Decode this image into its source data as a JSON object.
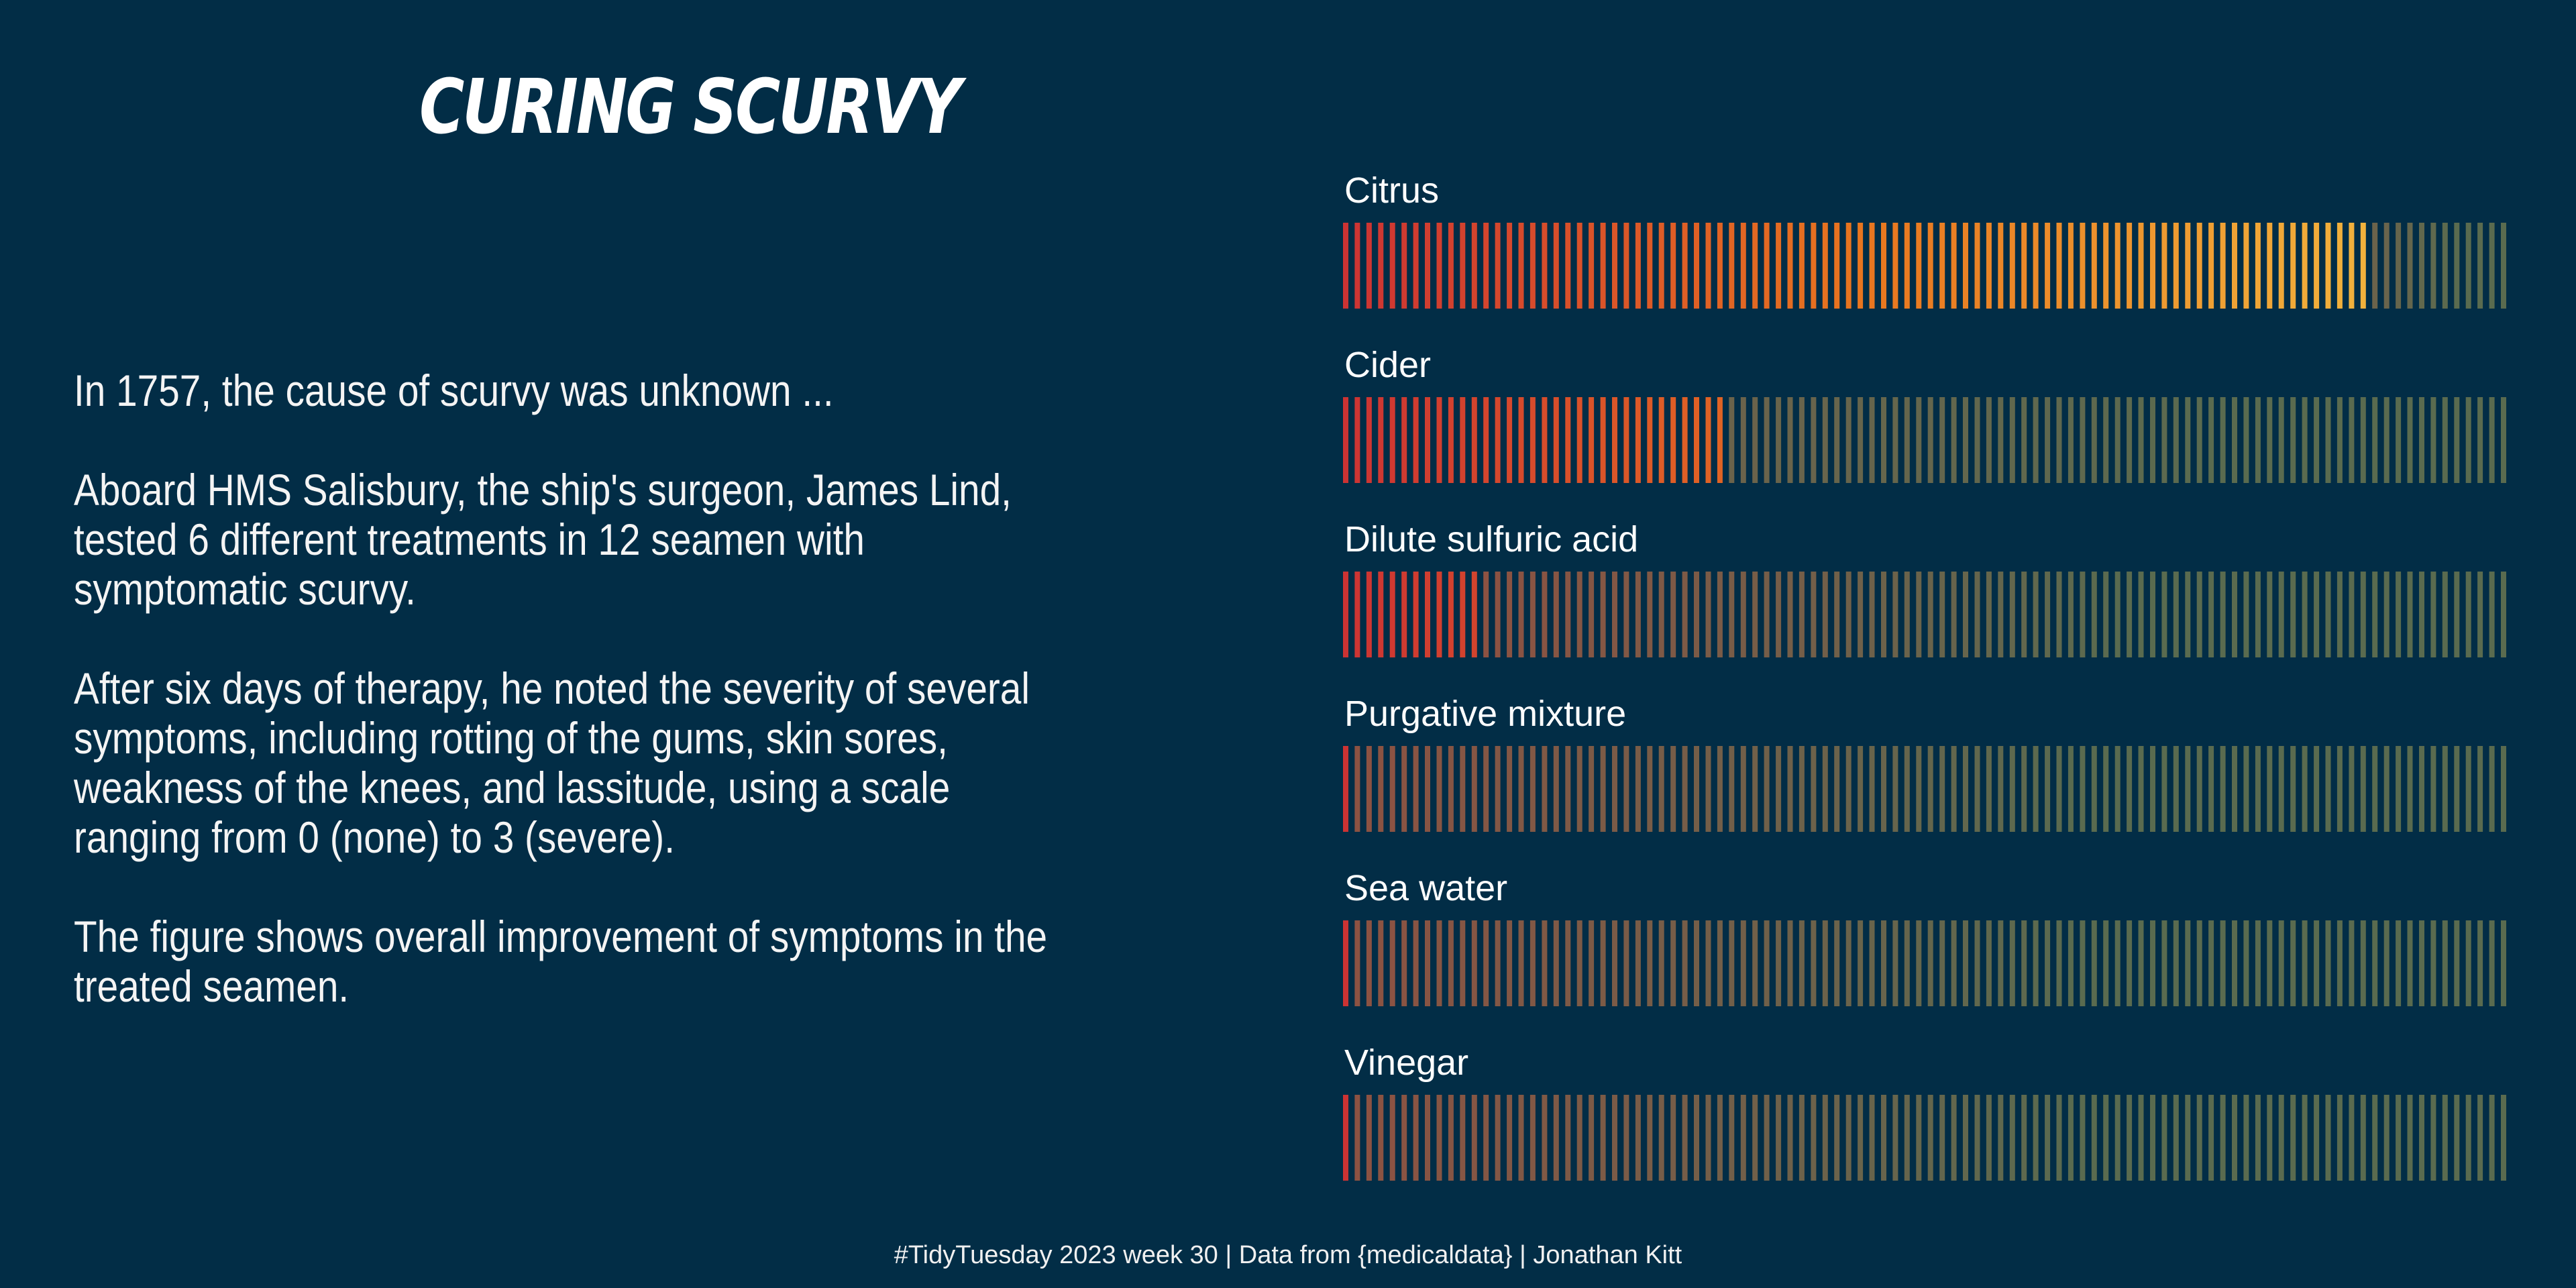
{
  "title": "Curing scurvy",
  "intro": {
    "p1": "In 1757, the cause of scurvy was unknown ...",
    "p2": "Aboard HMS Salisbury, the ship's surgeon, James Lind, tested 6 different treatments in 12 seamen with symptomatic scurvy.",
    "p3": "After six days of therapy, he noted the severity of several symptoms, including rotting of the gums, skin sores, weakness of the knees, and lassitude, using a scale ranging from 0 (none) to 3 (severe).",
    "p4": "The figure shows overall improvement of symptoms in the treated seamen."
  },
  "caption": "#TidyTuesday 2023 week 30 | Data from {medicaldata} | Jonathan Kitt",
  "colors": {
    "background": "#022d46",
    "gradient_start": "#cc3333",
    "gradient_mid": "#e8751f",
    "gradient_end": "#f2b33d",
    "remaining": "#5a6b4f"
  },
  "chart_data": {
    "type": "bar",
    "orientation": "horizontal",
    "style": "striped progress bars",
    "categories": [
      "Citrus",
      "Cider",
      "Dilute sulfuric acid",
      "Purgative mixture",
      "Sea water",
      "Vinegar"
    ],
    "values": [
      88,
      33,
      12,
      0,
      0,
      0
    ],
    "xlim": [
      0,
      100
    ]
  }
}
